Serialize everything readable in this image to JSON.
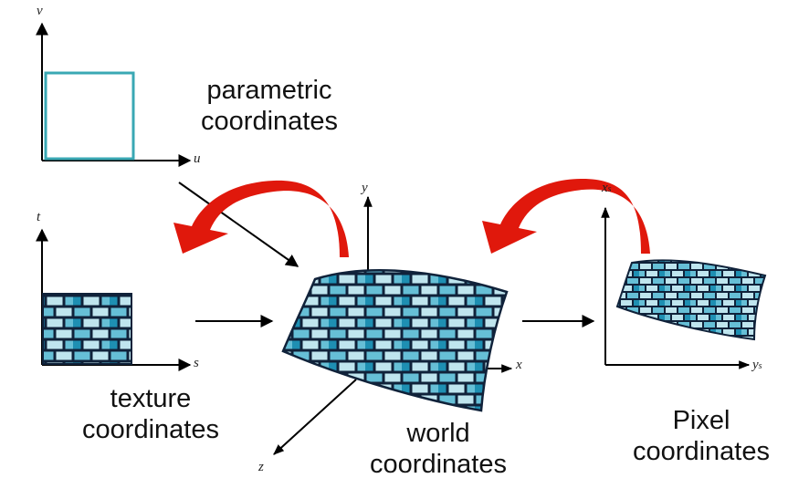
{
  "labels": {
    "parametric": [
      "parametric",
      "coordinates"
    ],
    "texture": [
      "texture",
      "coordinates"
    ],
    "world": [
      "world",
      "coordinates"
    ],
    "pixel": [
      "Pixel",
      "coordinates"
    ]
  },
  "axes": {
    "param_v": "v",
    "param_u": "u",
    "tex_t": "t",
    "tex_s": "s",
    "world_x": "x",
    "world_y": "y",
    "world_z": "z",
    "pixel_x": "x",
    "pixel_x_sub": "s",
    "pixel_y": "y",
    "pixel_y_sub": "s"
  },
  "colors": {
    "frame": "#3aa8b4",
    "brick_light": "#bfe5ee",
    "brick_mid": "#66bfd6",
    "brick_dark": "#1e8fb2",
    "mortar": "#10223a",
    "arrow_red": "#e0180c",
    "arrow_black": "#000000"
  }
}
